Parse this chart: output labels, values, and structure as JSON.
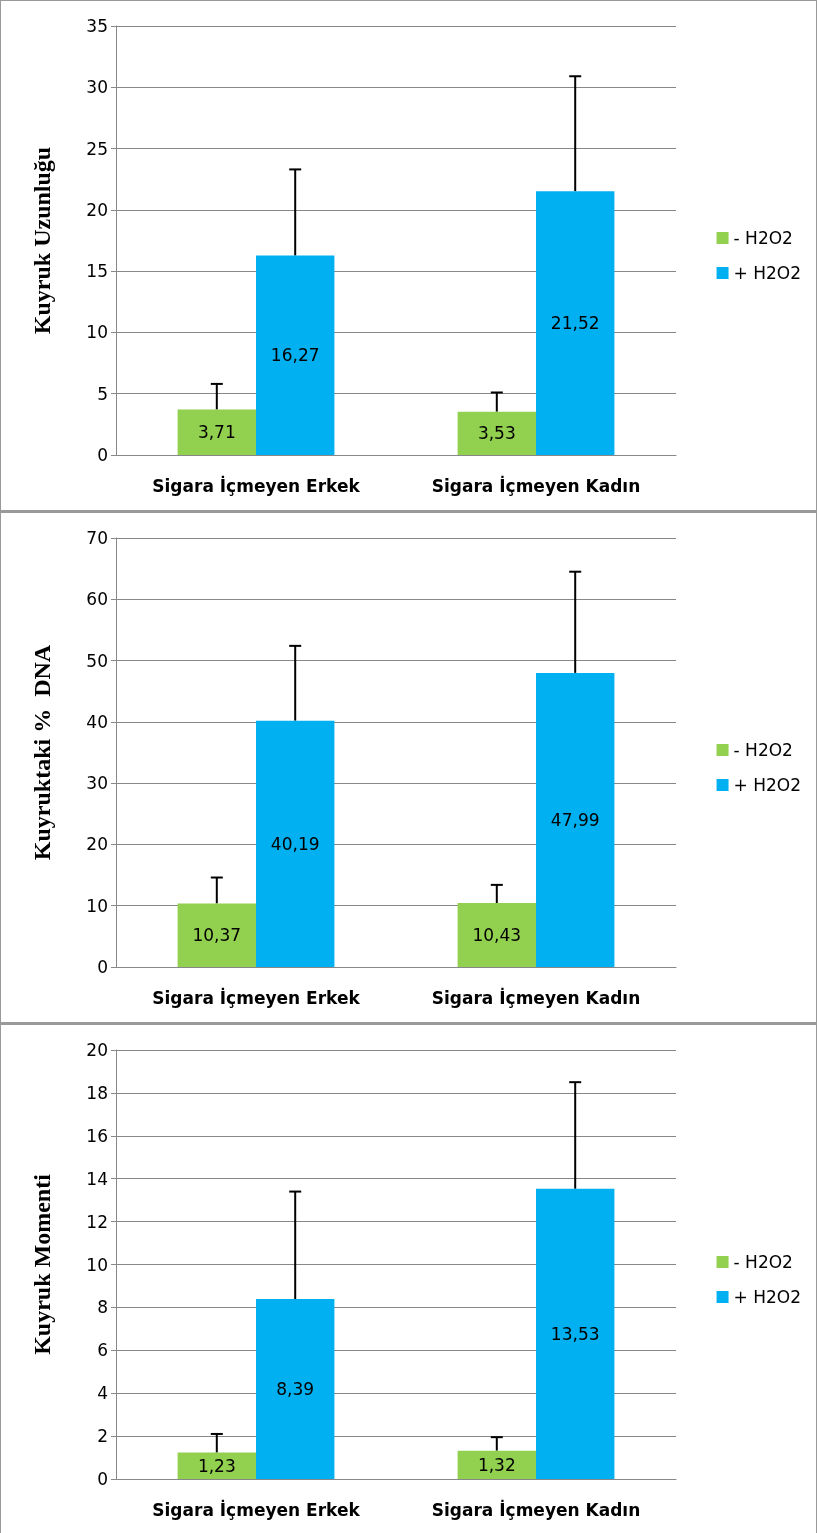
{
  "chart_data": [
    {
      "type": "bar",
      "ylabel": "Kuyruk Uzunluğu",
      "categories": [
        "Sigara İçmeyen Erkek",
        "Sigara İçmeyen Kadın"
      ],
      "series": [
        {
          "name": "- H2O2",
          "color": "#92d050",
          "values": [
            3.71,
            3.53
          ],
          "value_labels": [
            "3,71",
            "3,53"
          ],
          "errors": [
            [
              3.71,
              5.8
            ],
            [
              3.53,
              5.1
            ]
          ]
        },
        {
          "name": "+ H2O2",
          "color": "#00b0f0",
          "values": [
            16.27,
            21.52
          ],
          "value_labels": [
            "16,27",
            "21,52"
          ],
          "errors": [
            [
              16.27,
              23.3
            ],
            [
              21.52,
              30.9
            ]
          ]
        }
      ],
      "ylim": [
        0,
        35
      ],
      "yticks": [
        0,
        5,
        10,
        15,
        20,
        25,
        30,
        35
      ],
      "grid": "y",
      "legend": "right"
    },
    {
      "type": "bar",
      "ylabel": "Kuyruktaki %  DNA",
      "categories": [
        "Sigara İçmeyen Erkek",
        "Sigara İçmeyen Kadın"
      ],
      "series": [
        {
          "name": "- H2O2",
          "color": "#92d050",
          "values": [
            10.37,
            10.43
          ],
          "value_labels": [
            "10,37",
            "10,43"
          ],
          "errors": [
            [
              10.37,
              14.6
            ],
            [
              10.43,
              13.4
            ]
          ]
        },
        {
          "name": "+ H2O2",
          "color": "#00b0f0",
          "values": [
            40.19,
            47.99
          ],
          "value_labels": [
            "40,19",
            "47,99"
          ],
          "errors": [
            [
              40.19,
              52.4
            ],
            [
              47.99,
              64.5
            ]
          ]
        }
      ],
      "ylim": [
        0,
        70
      ],
      "yticks": [
        0,
        10,
        20,
        30,
        40,
        50,
        60,
        70
      ],
      "grid": "y",
      "legend": "right"
    },
    {
      "type": "bar",
      "ylabel": "Kuyruk Momenti",
      "categories": [
        "Sigara İçmeyen Erkek",
        "Sigara İçmeyen Kadın"
      ],
      "series": [
        {
          "name": "- H2O2",
          "color": "#92d050",
          "values": [
            1.23,
            1.32
          ],
          "value_labels": [
            "1,23",
            "1,32"
          ],
          "errors": [
            [
              1.23,
              2.1
            ],
            [
              1.32,
              1.95
            ]
          ]
        },
        {
          "name": "+ H2O2",
          "color": "#00b0f0",
          "values": [
            8.39,
            13.53
          ],
          "value_labels": [
            "8,39",
            "13,53"
          ],
          "errors": [
            [
              8.39,
              13.4
            ],
            [
              13.53,
              18.5
            ]
          ]
        }
      ],
      "ylim": [
        0,
        20
      ],
      "yticks": [
        0,
        2,
        4,
        6,
        8,
        10,
        12,
        14,
        16,
        18,
        20
      ],
      "grid": "y",
      "legend": "right"
    }
  ]
}
